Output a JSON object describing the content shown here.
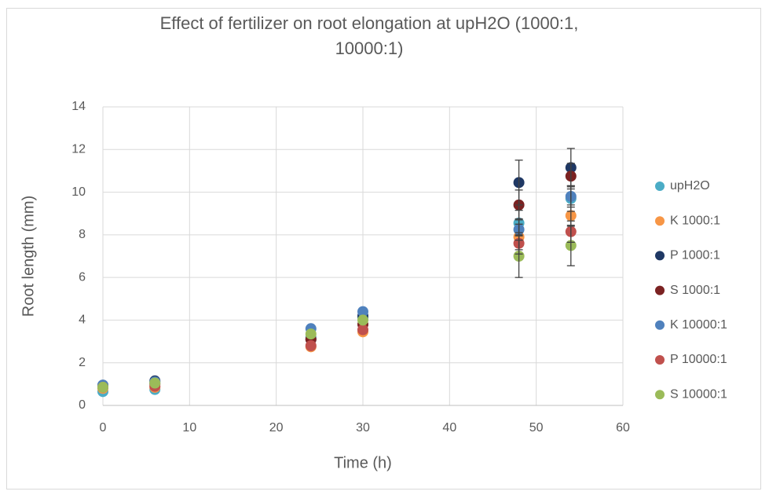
{
  "chart_data": {
    "type": "scatter",
    "title": "Effect of fertilizer on root elongation at upH2O (1000:1, 10000:1)",
    "x_label": "Time (h)",
    "y_label": "Root length (mm)",
    "x": [
      0,
      6,
      24,
      30,
      48,
      54
    ],
    "xlim": [
      0,
      60
    ],
    "xticks": [
      0,
      10,
      20,
      30,
      40,
      50,
      60
    ],
    "ylim": [
      0,
      14
    ],
    "yticks": [
      0,
      2,
      4,
      6,
      8,
      10,
      12,
      14
    ],
    "grid": true,
    "legend": "right",
    "series": [
      {
        "name": "upH2O",
        "color": "#4bacc6",
        "values": [
          0.65,
          0.75,
          3.2,
          4.1,
          8.55,
          9.7
        ],
        "errors": [
          null,
          null,
          null,
          null,
          0.6,
          0.6
        ]
      },
      {
        "name": "K 1000:1",
        "color": "#f79646",
        "values": [
          0.8,
          0.85,
          2.75,
          3.45,
          7.9,
          8.9
        ],
        "errors": [
          null,
          null,
          null,
          null,
          0.6,
          0.5
        ]
      },
      {
        "name": "P 1000:1",
        "color": "#1f3864",
        "values": [
          0.95,
          1.15,
          3.1,
          4.2,
          10.45,
          11.15
        ],
        "errors": [
          null,
          null,
          null,
          null,
          1.05,
          0.9
        ]
      },
      {
        "name": "S 1000:1",
        "color": "#7b2222",
        "values": [
          0.9,
          1.0,
          3.1,
          3.8,
          9.4,
          10.75
        ],
        "errors": [
          null,
          null,
          null,
          null,
          0.7,
          0.6
        ]
      },
      {
        "name": "K 10000:1",
        "color": "#4f81bd",
        "values": [
          0.95,
          1.1,
          3.6,
          4.4,
          8.25,
          9.8
        ],
        "errors": [
          null,
          null,
          null,
          null,
          0.5,
          0.5
        ]
      },
      {
        "name": "P 10000:1",
        "color": "#c0504d",
        "values": [
          0.85,
          0.9,
          2.8,
          3.55,
          7.6,
          8.15
        ],
        "errors": [
          null,
          null,
          null,
          null,
          0.5,
          0.5
        ]
      },
      {
        "name": "S 10000:1",
        "color": "#9bbb59",
        "values": [
          0.85,
          1.05,
          3.35,
          4.0,
          7.0,
          7.5
        ],
        "errors": [
          null,
          null,
          null,
          null,
          1.0,
          0.95
        ]
      }
    ]
  }
}
